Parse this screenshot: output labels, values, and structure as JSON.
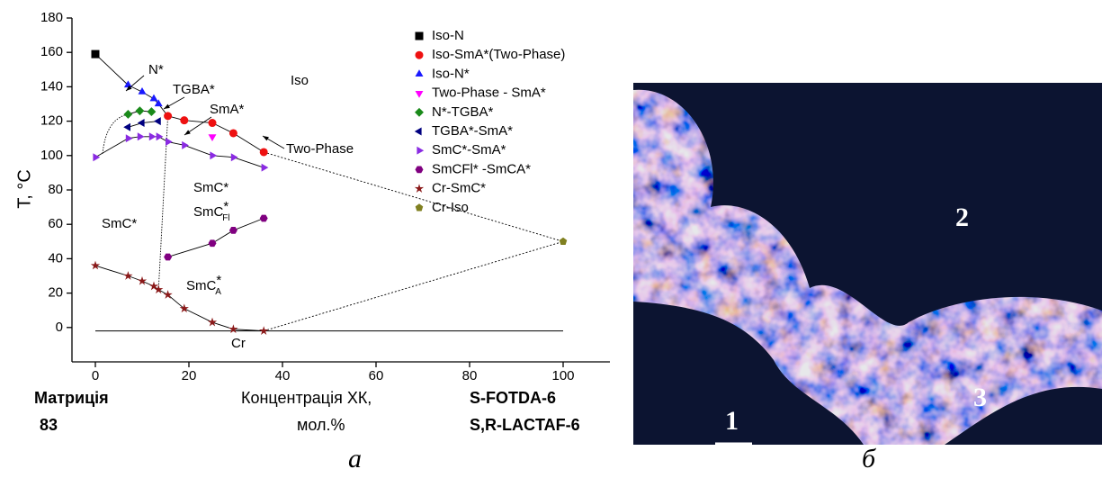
{
  "chart_data": {
    "type": "scatter",
    "ylabel": "T, °C",
    "xlabel": [
      "Концентрація ХК,",
      "мол.%"
    ],
    "left_end_label": [
      "Матриція",
      "83"
    ],
    "right_end_label": [
      "S-FOTDA-6",
      "S,R-LACTAF-6"
    ],
    "xlim": [
      -5,
      110
    ],
    "xticks": [
      0,
      20,
      40,
      60,
      80,
      100
    ],
    "ylim": [
      -20,
      180
    ],
    "yticks": [
      0,
      20,
      40,
      60,
      80,
      100,
      120,
      140,
      160,
      180
    ],
    "series": [
      {
        "name": "Iso-N",
        "color": "#000000",
        "marker": "square",
        "x": [
          0
        ],
        "values": [
          159
        ]
      },
      {
        "name": "Iso-SmA*(Two-Phase)",
        "color": "#ee1111",
        "marker": "circle",
        "x": [
          15.5,
          19,
          25,
          29.5,
          36
        ],
        "values": [
          123,
          120.5,
          119,
          113,
          102
        ]
      },
      {
        "name": "Iso-N*",
        "color": "#1a1aff",
        "marker": "triangle-up",
        "x": [
          7,
          10,
          12.5,
          13.5
        ],
        "values": [
          141,
          137,
          133,
          130
        ]
      },
      {
        "name": "Two-Phase - SmA*",
        "color": "#ff00ff",
        "marker": "triangle-down",
        "x": [
          25
        ],
        "values": [
          111
        ]
      },
      {
        "name": "N*-TGBA*",
        "color": "#1a8a1a",
        "marker": "diamond",
        "x": [
          7,
          9.5,
          12
        ],
        "values": [
          124,
          126,
          125.5
        ]
      },
      {
        "name": "TGBA*-SmA*",
        "color": "#000080",
        "marker": "triangle-left",
        "x": [
          7,
          10,
          13.5
        ],
        "values": [
          116.5,
          119,
          120
        ]
      },
      {
        "name": "SmC*-SmA*",
        "color": "#8a2be2",
        "marker": "triangle-right",
        "x": [
          0,
          7,
          9.5,
          12,
          13.5,
          15.5,
          19,
          25,
          29.5,
          36
        ],
        "values": [
          99,
          110,
          111,
          111,
          111,
          108,
          106,
          100,
          99,
          93
        ]
      },
      {
        "name": "SmCFl* -SmCA*",
        "color": "#800080",
        "marker": "hexagon",
        "x": [
          15.5,
          25,
          29.5,
          36
        ],
        "values": [
          41,
          49,
          56.5,
          63.5
        ]
      },
      {
        "name": "Cr-SmC*",
        "color": "#8b1a1a",
        "marker": "star",
        "x": [
          0,
          7,
          10,
          12.5,
          13.5,
          15.5,
          19,
          25,
          29.5,
          36
        ],
        "values": [
          36,
          30,
          27,
          24,
          22,
          19,
          11,
          3,
          -1,
          -2
        ]
      },
      {
        "name": "Cr-Iso",
        "color": "#808020",
        "marker": "pentagon",
        "x": [
          100
        ],
        "values": [
          50
        ]
      }
    ],
    "annotations": [
      {
        "text": "N*"
      },
      {
        "text": "TGBA*"
      },
      {
        "text": "SmA*"
      },
      {
        "text": "Iso"
      },
      {
        "text": "Two-Phase"
      },
      {
        "text": "SmC*"
      },
      {
        "text": "SmC",
        "sub": "Fl",
        "sup": "*"
      },
      {
        "text": "SmC*"
      },
      {
        "text": "SmC",
        "sub": "A",
        "sup": "*"
      },
      {
        "text": "Cr"
      }
    ]
  },
  "figure": {
    "panel_labels": [
      "a",
      "б"
    ],
    "photo_labels": [
      "1",
      "2",
      "3"
    ]
  }
}
